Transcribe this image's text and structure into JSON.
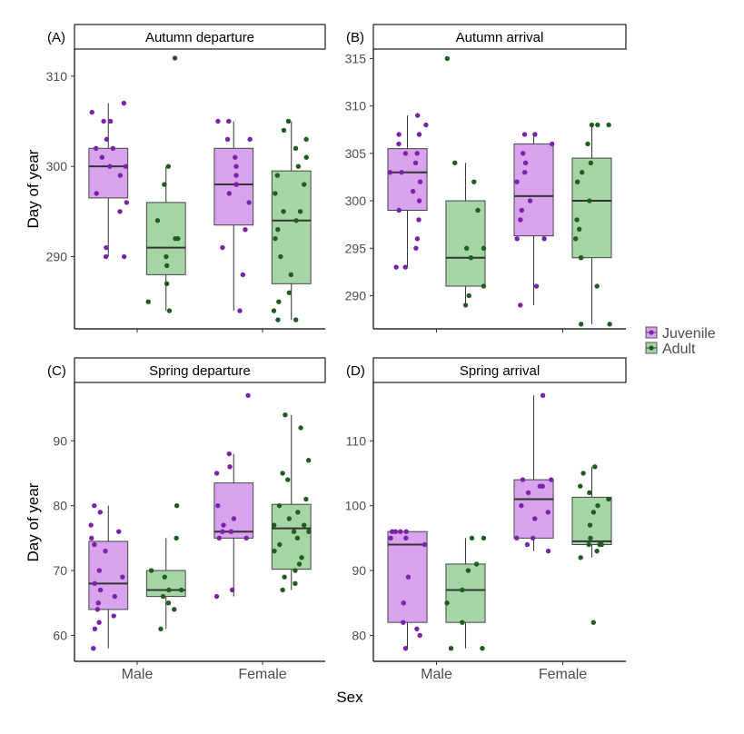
{
  "figure": {
    "x_axis_title": "Sex",
    "y_axis_title": "Day of year",
    "colors": {
      "Juvenile": "#d9a3ee",
      "Adult": "#a6d6a6",
      "Juvenile_point": "#7a22a8",
      "Adult_point": "#1f5c1f",
      "median": "#333333"
    }
  },
  "chart_data": [
    {
      "type": "boxplot",
      "panel_tag": "(A)",
      "title": "Autumn departure",
      "ylabel": "Day of year",
      "xlabel": "",
      "categories": [
        "Male",
        "Female"
      ],
      "legend": [
        "Juvenile",
        "Adult"
      ],
      "ylim": [
        282,
        313
      ],
      "yticks": [
        290,
        300,
        310
      ],
      "boxes": [
        {
          "category": "Male",
          "group": "Juvenile",
          "min": 290,
          "q1": 296.5,
          "median": 300,
          "q3": 302,
          "max": 307
        },
        {
          "category": "Male",
          "group": "Adult",
          "min": 284,
          "q1": 288,
          "median": 291,
          "q3": 296,
          "max": 300
        },
        {
          "category": "Female",
          "group": "Juvenile",
          "min": 284,
          "q1": 293.5,
          "median": 298,
          "q3": 302,
          "max": 305
        },
        {
          "category": "Female",
          "group": "Adult",
          "min": 283,
          "q1": 287,
          "median": 294,
          "q3": 299.5,
          "max": 305
        }
      ],
      "points": {
        "Male|Juvenile": [
          307,
          306,
          305,
          305,
          303,
          302,
          302,
          301,
          300,
          300,
          299,
          297,
          296,
          295,
          291,
          290,
          290
        ],
        "Male|Adult": [
          312,
          300,
          298,
          294,
          292,
          292,
          290,
          289,
          287,
          285,
          284
        ],
        "Female|Juvenile": [
          305,
          305,
          303,
          303,
          301,
          300,
          299,
          298,
          298,
          297,
          296,
          293,
          291,
          288,
          284
        ],
        "Female|Adult": [
          305,
          304,
          303,
          302,
          301,
          300,
          299,
          298,
          297,
          295,
          295,
          294,
          293,
          292,
          290,
          288,
          286,
          285,
          284,
          283,
          283
        ]
      }
    },
    {
      "type": "boxplot",
      "panel_tag": "(B)",
      "title": "Autumn arrival",
      "ylabel": "",
      "xlabel": "",
      "categories": [
        "Male",
        "Female"
      ],
      "legend": [
        "Juvenile",
        "Adult"
      ],
      "ylim": [
        286.5,
        316
      ],
      "yticks": [
        290,
        295,
        300,
        305,
        310,
        315
      ],
      "boxes": [
        {
          "category": "Male",
          "group": "Juvenile",
          "min": 293,
          "q1": 299,
          "median": 303,
          "q3": 305.5,
          "max": 309
        },
        {
          "category": "Male",
          "group": "Adult",
          "min": 289,
          "q1": 291,
          "median": 294,
          "q3": 300,
          "max": 304
        },
        {
          "category": "Female",
          "group": "Juvenile",
          "min": 289,
          "q1": 296.3,
          "median": 300.5,
          "q3": 306,
          "max": 307
        },
        {
          "category": "Female",
          "group": "Adult",
          "min": 287,
          "q1": 294,
          "median": 300,
          "q3": 304.5,
          "max": 308
        }
      ],
      "points": {
        "Male|Juvenile": [
          309,
          308,
          307,
          307,
          306,
          305,
          305,
          304,
          303,
          303,
          302,
          301,
          300,
          299,
          298,
          296,
          295,
          293,
          293
        ],
        "Male|Adult": [
          315,
          304,
          302,
          299,
          295,
          295,
          294,
          291,
          290,
          289
        ],
        "Female|Juvenile": [
          307,
          307,
          306,
          305,
          304,
          303,
          302,
          300,
          299,
          298,
          296,
          296,
          291,
          289
        ],
        "Female|Adult": [
          308,
          308,
          308,
          306,
          304,
          303,
          302,
          300,
          298,
          297,
          296,
          294,
          294,
          291,
          287,
          287
        ]
      }
    },
    {
      "type": "boxplot",
      "panel_tag": "(C)",
      "title": "Spring departure",
      "ylabel": "Day of year",
      "xlabel": "",
      "categories": [
        "Male",
        "Female"
      ],
      "legend": [
        "Juvenile",
        "Adult"
      ],
      "ylim": [
        56,
        99
      ],
      "yticks": [
        60,
        70,
        80,
        90
      ],
      "boxes": [
        {
          "category": "Male",
          "group": "Juvenile",
          "min": 58,
          "q1": 64,
          "median": 68,
          "q3": 74.5,
          "max": 80
        },
        {
          "category": "Male",
          "group": "Adult",
          "min": 61,
          "q1": 66,
          "median": 67,
          "q3": 70,
          "max": 75
        },
        {
          "category": "Female",
          "group": "Juvenile",
          "min": 66,
          "q1": 75,
          "median": 76,
          "q3": 83.5,
          "max": 88
        },
        {
          "category": "Female",
          "group": "Adult",
          "min": 67,
          "q1": 70.2,
          "median": 76.5,
          "q3": 80.2,
          "max": 94
        }
      ],
      "points": {
        "Male|Juvenile": [
          80,
          79,
          77,
          76,
          75,
          74,
          73,
          70,
          69,
          68,
          67,
          66,
          65,
          64,
          63,
          62,
          61,
          58
        ],
        "Male|Adult": [
          80,
          75,
          70,
          69,
          67,
          67,
          66,
          65,
          64,
          61
        ],
        "Female|Juvenile": [
          97,
          88,
          86,
          85,
          80,
          78,
          77,
          76,
          76,
          75,
          75,
          67,
          66
        ],
        "Female|Adult": [
          94,
          92,
          87,
          85,
          84,
          81,
          80,
          79,
          78,
          77,
          77,
          76,
          76,
          75,
          74,
          73,
          72,
          71,
          70,
          69,
          68,
          67
        ]
      }
    },
    {
      "type": "boxplot",
      "panel_tag": "(D)",
      "title": "Spring arrival",
      "ylabel": "",
      "xlabel": "",
      "categories": [
        "Male",
        "Female"
      ],
      "legend": [
        "Juvenile",
        "Adult"
      ],
      "ylim": [
        76,
        119
      ],
      "yticks": [
        80,
        90,
        100,
        110
      ],
      "boxes": [
        {
          "category": "Male",
          "group": "Juvenile",
          "min": 78,
          "q1": 82,
          "median": 94,
          "q3": 96,
          "max": 96
        },
        {
          "category": "Male",
          "group": "Adult",
          "min": 78,
          "q1": 82,
          "median": 87,
          "q3": 91,
          "max": 95
        },
        {
          "category": "Female",
          "group": "Juvenile",
          "min": 93,
          "q1": 95,
          "median": 101,
          "q3": 104,
          "max": 117
        },
        {
          "category": "Female",
          "group": "Adult",
          "min": 92,
          "q1": 94,
          "median": 94.5,
          "q3": 101.3,
          "max": 106
        }
      ],
      "points": {
        "Male|Juvenile": [
          96,
          96,
          96,
          96,
          95,
          95,
          94,
          89,
          85,
          82,
          81,
          80,
          78
        ],
        "Male|Adult": [
          95,
          95,
          91,
          90,
          87,
          85,
          82,
          78,
          78
        ],
        "Female|Juvenile": [
          117,
          104,
          104,
          103,
          103,
          102,
          100,
          99,
          98,
          95,
          95,
          94,
          93
        ],
        "Female|Adult": [
          106,
          105,
          103,
          102,
          101,
          100,
          99,
          97,
          95,
          94,
          94,
          94,
          93,
          92,
          82
        ]
      }
    }
  ]
}
